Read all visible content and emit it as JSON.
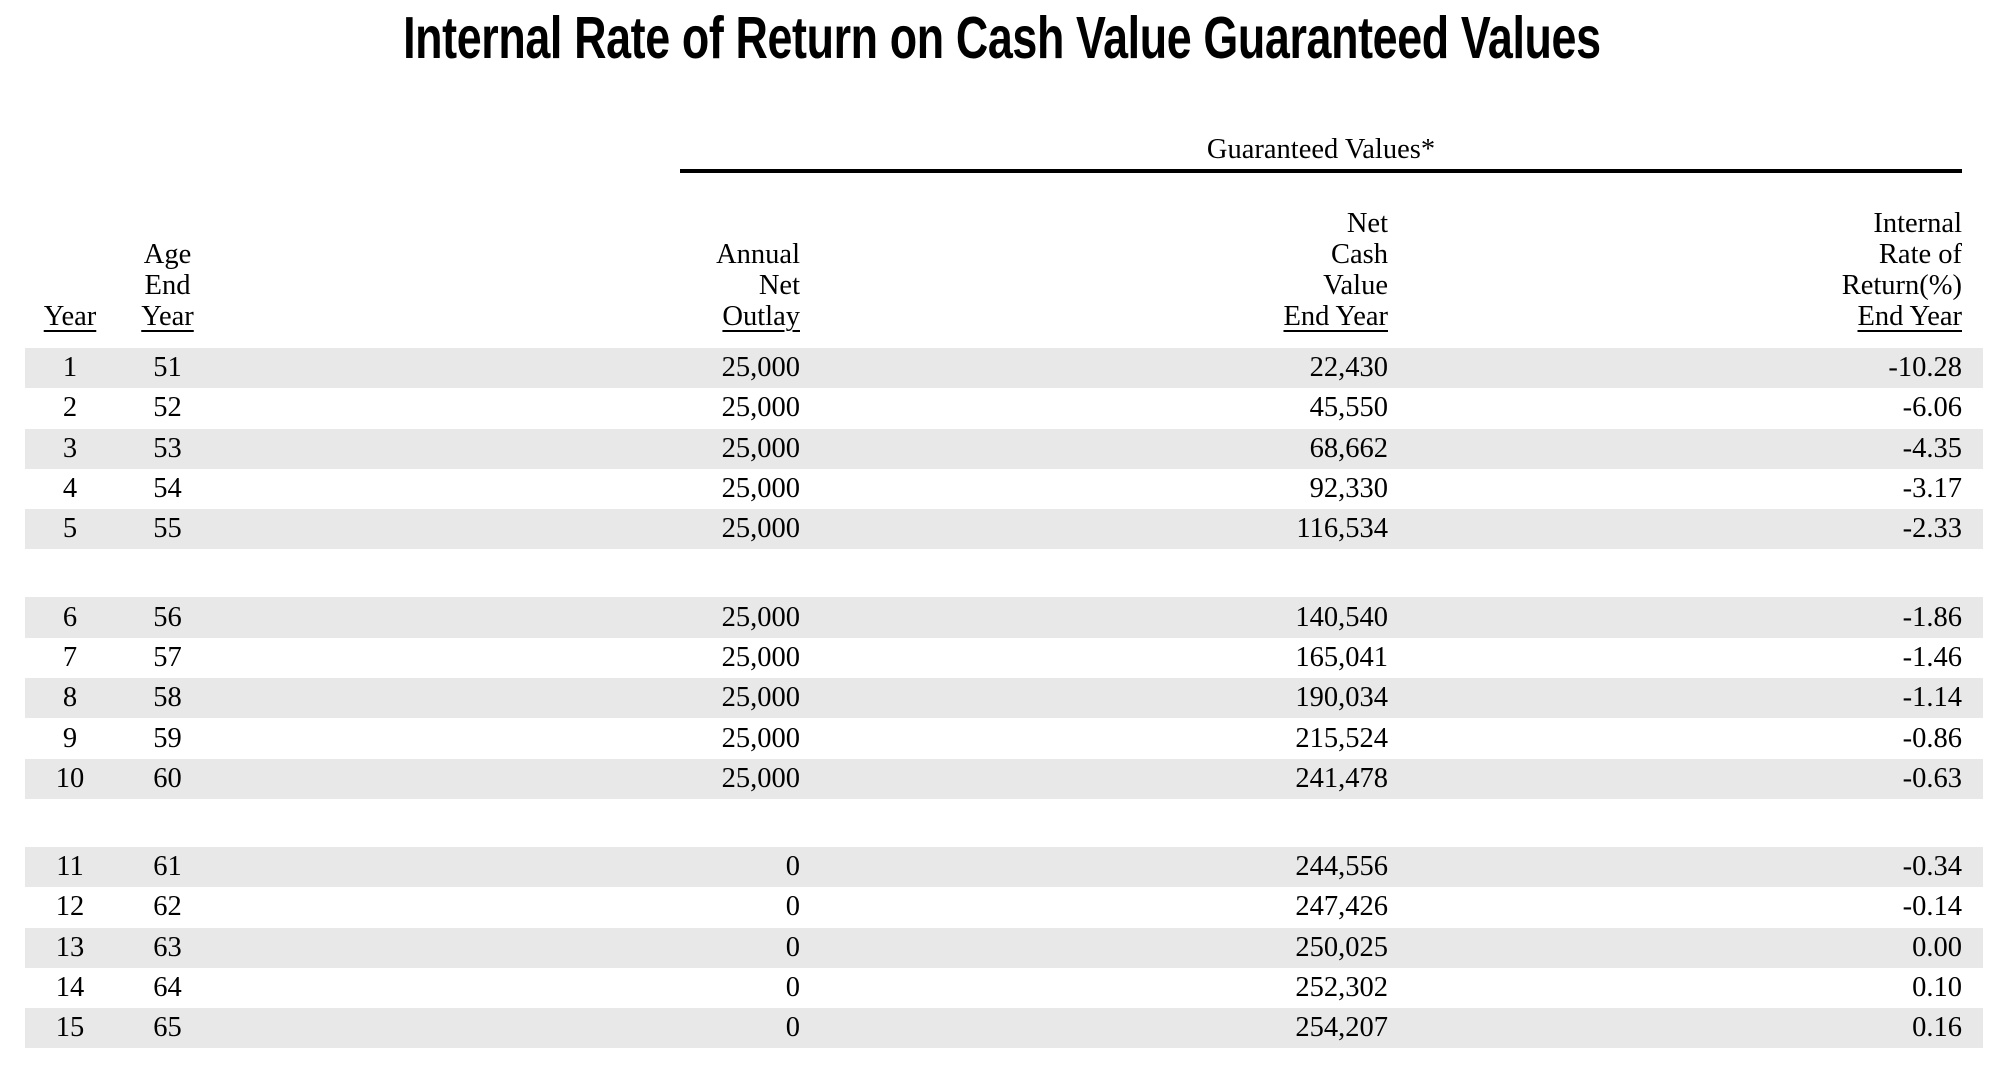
{
  "page": {
    "title": "Internal Rate of Return on Cash Value Guaranteed Values"
  },
  "table": {
    "group_header": "Guaranteed Values*",
    "columns": [
      {
        "id": "year",
        "lines": [
          "Year"
        ]
      },
      {
        "id": "age",
        "lines": [
          "Age",
          "End",
          "Year"
        ]
      },
      {
        "id": "outlay",
        "lines": [
          "Annual",
          "Net",
          "Outlay"
        ]
      },
      {
        "id": "ncv",
        "lines": [
          "Net",
          "Cash",
          "Value",
          "End Year"
        ]
      },
      {
        "id": "irr",
        "lines": [
          "Internal",
          "Rate of",
          "Return(%)",
          "End Year"
        ]
      }
    ],
    "groups": [
      {
        "rows": [
          [
            "1",
            "51",
            "25,000",
            "22,430",
            "-10.28"
          ],
          [
            "2",
            "52",
            "25,000",
            "45,550",
            "-6.06"
          ],
          [
            "3",
            "53",
            "25,000",
            "68,662",
            "-4.35"
          ],
          [
            "4",
            "54",
            "25,000",
            "92,330",
            "-3.17"
          ],
          [
            "5",
            "55",
            "25,000",
            "116,534",
            "-2.33"
          ]
        ]
      },
      {
        "rows": [
          [
            "6",
            "56",
            "25,000",
            "140,540",
            "-1.86"
          ],
          [
            "7",
            "57",
            "25,000",
            "165,041",
            "-1.46"
          ],
          [
            "8",
            "58",
            "25,000",
            "190,034",
            "-1.14"
          ],
          [
            "9",
            "59",
            "25,000",
            "215,524",
            "-0.86"
          ],
          [
            "10",
            "60",
            "25,000",
            "241,478",
            "-0.63"
          ]
        ]
      },
      {
        "rows": [
          [
            "11",
            "61",
            "0",
            "244,556",
            "-0.34"
          ],
          [
            "12",
            "62",
            "0",
            "247,426",
            "-0.14"
          ],
          [
            "13",
            "63",
            "0",
            "250,025",
            "0.00"
          ],
          [
            "14",
            "64",
            "0",
            "252,302",
            "0.10"
          ],
          [
            "15",
            "65",
            "0",
            "254,207",
            "0.16"
          ]
        ]
      }
    ]
  },
  "colors": {
    "stripe": "#e8e8e8",
    "rule": "#000000",
    "text": "#000000"
  }
}
